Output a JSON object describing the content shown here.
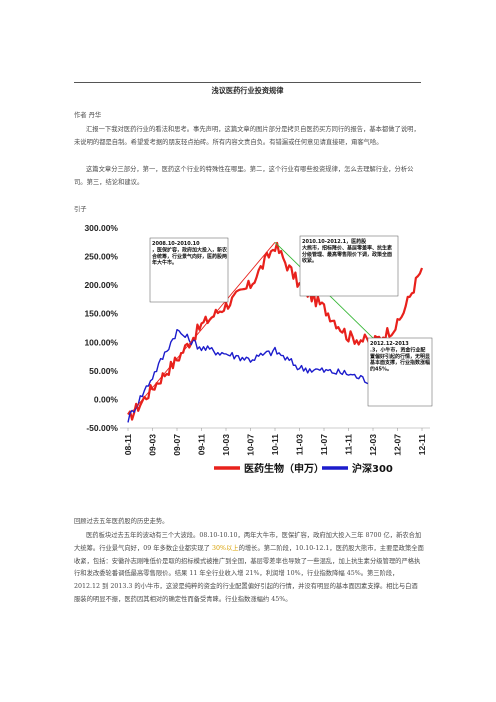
{
  "doc": {
    "title": "浅议医药行业投资规律",
    "author": "作者 丹华",
    "para1": "汇报一下我对医药行业的看法和思考。事先声明，这篇文章的图片部分是拷贝自医药买方同行的报告，基本都做了说明，未说明的都是自制。希望爱考据的朋友轻点拍砖。所有内容文责自负。有错漏或任何意见请直接砸，甭客气哈。",
    "para2": "这篇文章分三部分，第一，医药这个行业的特殊性在哪里。第二，这个行业有哪些投资规律，怎么去理解行业，分析公司。第三，结论和建议。",
    "intro_label": "引子",
    "lower1": "回顾过去五年医药股的历史走势。",
    "lower2_pre": "医药板块过去五年的波动有三个大波段。08.10-10.10，两年大牛市，医保扩容，政府加大投入三年 8700 亿，新农合加大统筹。行业景气向好，09 年多数企业都实现了 ",
    "lower2_hl": "30%以上",
    "lower2_post": "的增长。第二阶段，10.10-12.1，医药股大熊市，主要是政策全面收紧，包括：安徽孙志刚唯低价是取的招标模式被推广到全国，基层零差率也导致了一些混乱，加上抗生素分级管理的严格执行和发改委轮番调低最高零售限价。结果 11 年全行业收入增 21%，利润增 10%，行业指数降幅 45%。第三阶段，2012.12 到 2013.3 的小牛市，这波是纯粹的资金的行业配置偏好引起的行情，并没有明显的基本面因素支撑。相比与白酒服装的明显不振，医药因其相对的确定性而备受青睐。行业指数涨幅约 45%。"
  },
  "chart_data": {
    "type": "line",
    "x_ticks": [
      "08-11",
      "09-03",
      "09-07",
      "09-11",
      "10-03",
      "10-07",
      "10-11",
      "11-03",
      "11-07",
      "11-11",
      "12-03",
      "12-07",
      "12-11"
    ],
    "y_ticks": [
      "300.00%",
      "250.00%",
      "200.00%",
      "150.00%",
      "100.00%",
      "50.00%",
      "0.00%",
      "-50.00%"
    ],
    "ylim": [
      -50,
      300
    ],
    "series": [
      {
        "name": "医药生物（申万）",
        "color": "#e8211c",
        "values": [
          -35,
          20,
          70,
          130,
          165,
          200,
          270,
          200,
          160,
          110,
          100,
          130,
          230
        ]
      },
      {
        "name": "沪深300",
        "color": "#1c1ccc",
        "values": [
          -35,
          40,
          120,
          90,
          80,
          70,
          85,
          55,
          50,
          45,
          30,
          25,
          55
        ]
      }
    ],
    "annotations": [
      "2008.10-2010.10，医保扩容，政府加大投入，新农合统筹，行业景气向好，医药股两年大牛市。",
      "2010.10-2012.1，医药股大熊市，招标降价、基层零差率、抗生素分级管理、最高零售限价下调，政策全面收紧。",
      "2012.12-2013.3，小牛市，资金行业配置偏好引起的行情，无明显基本面支撑，行业指数涨幅约45%。"
    ]
  },
  "colors": {
    "red": "#e8211c",
    "blue": "#1c1ccc",
    "green": "#38b838",
    "accent": "#d8a000"
  }
}
